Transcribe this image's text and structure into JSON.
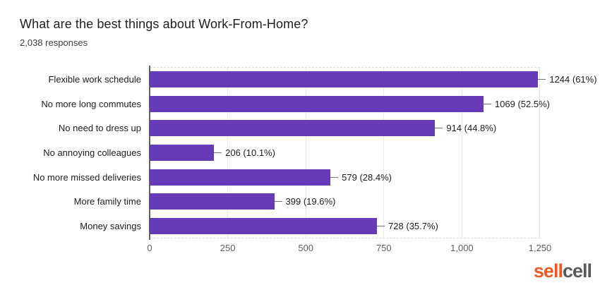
{
  "chart_data": {
    "type": "bar",
    "orientation": "horizontal",
    "title": "What are the best things about Work-From-Home?",
    "subtitle": "2,038 responses",
    "categories": [
      "Flexible work schedule",
      "No more long commutes",
      "No need to dress up",
      "No annoying colleagues",
      "No more missed deliveries",
      "More family time",
      "Money savings"
    ],
    "values": [
      1244,
      1069,
      914,
      206,
      579,
      399,
      728
    ],
    "value_labels": [
      "1244 (61%)",
      "1069 (52.5%)",
      "914 (44.8%)",
      "206 (10.1%)",
      "579 (28.4%)",
      "399 (19.6%)",
      "728 (35.7%)"
    ],
    "xlim": [
      0,
      1250
    ],
    "xtick_labels": [
      "0",
      "250",
      "500",
      "750",
      "1,000",
      "1,250"
    ],
    "grid": "vertical-light",
    "legend": "none",
    "bar_color": "#673AB7"
  },
  "branding": {
    "logo_part1": "sell",
    "logo_part2": "cell",
    "logo_color1": "#f05a22",
    "logo_color2": "#58595b"
  }
}
